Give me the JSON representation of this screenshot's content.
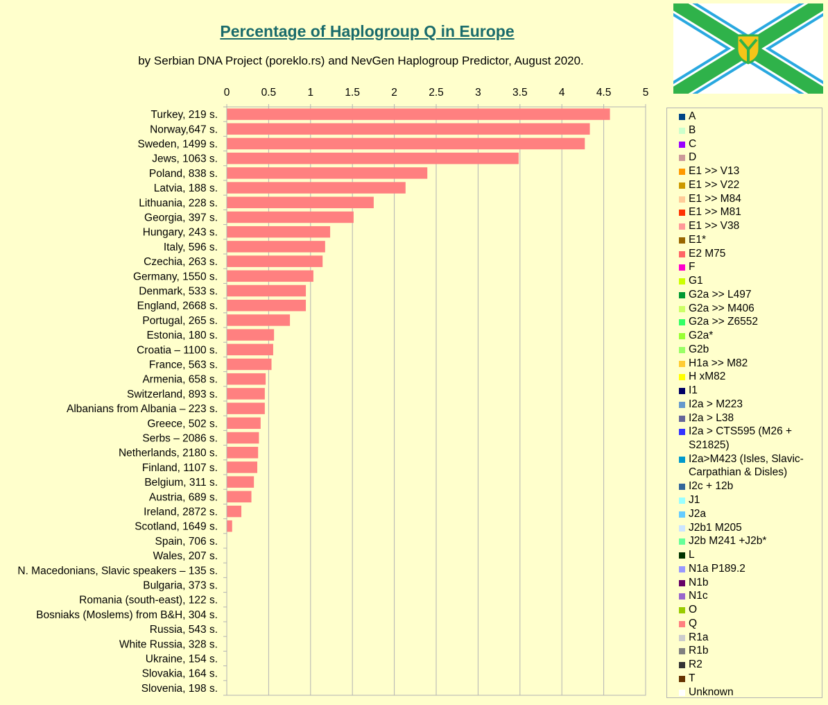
{
  "header": {
    "title": "Percentage of Haplogroup Q in Europe",
    "subtitle": "by Serbian DNA Project (poreklo.rs) and NevGen Haplogroup Predictor, August 2020."
  },
  "colors": {
    "bar": "#ff8080",
    "grid": "#b3b3b3",
    "background": "#ffffcc",
    "title": "#1a6b6b"
  },
  "chart_data": {
    "type": "bar",
    "orientation": "horizontal",
    "title": "Percentage of Haplogroup Q in Europe",
    "subtitle": "by Serbian DNA Project (poreklo.rs) and NevGen Haplogroup Predictor, August 2020.",
    "xlim": [
      0,
      5
    ],
    "x_ticks": [
      "0",
      "0.5",
      "1",
      "1.5",
      "2",
      "2.5",
      "3",
      "3.5",
      "4",
      "4.5",
      "5"
    ],
    "x_axis_position": "top",
    "grid": true,
    "legend_position": "right",
    "categories": [
      "Turkey, 219 s.",
      "Norway,647 s.",
      "Sweden, 1499 s.",
      "Jews, 1063 s.",
      "Poland, 838 s.",
      "Latvia, 188 s.",
      "Lithuania, 228 s.",
      "Georgia, 397 s.",
      "Hungary, 243 s.",
      "Italy, 596 s.",
      "Czechia, 263 s.",
      "Germany, 1550 s.",
      "Denmark, 533 s.",
      "England, 2668 s.",
      "Portugal, 265 s.",
      "Estonia, 180 s.",
      "Croatia – 1100 s.",
      "France, 563 s.",
      "Armenia, 658 s.",
      "Switzerland, 893 s.",
      "Albanians from Albania – 223 s.",
      "Greece, 502 s.",
      "Serbs – 2086 s.",
      "Netherlands, 2180 s.",
      "Finland, 1107 s.",
      "Belgium, 311 s.",
      "Austria, 689 s.",
      "Ireland, 2872 s.",
      "Scotland, 1649 s.",
      "Spain, 706 s.",
      "Wales, 207 s.",
      "N. Macedonians, Slavic speakers – 135 s.",
      "Bulgaria, 373 s.",
      "Romania (south-east), 122 s.",
      "Bosniaks (Moslems) from B&H, 304 s.",
      "Russia, 543 s.",
      "White Russia, 328 s.",
      "Ukraine, 154 s.",
      "Slovakia, 164 s.",
      "Slovenia, 198 s."
    ],
    "series": [
      {
        "name": "Q",
        "color": "#ff8080",
        "values": [
          4.57,
          4.33,
          4.27,
          3.48,
          2.39,
          2.13,
          1.75,
          1.51,
          1.23,
          1.17,
          1.14,
          1.03,
          0.94,
          0.94,
          0.75,
          0.56,
          0.55,
          0.53,
          0.46,
          0.45,
          0.45,
          0.4,
          0.38,
          0.37,
          0.36,
          0.32,
          0.29,
          0.17,
          0.06,
          0,
          0,
          0,
          0,
          0,
          0,
          0,
          0,
          0,
          0,
          0
        ]
      }
    ]
  },
  "legend": {
    "items": [
      {
        "label": "A",
        "color": "#004586"
      },
      {
        "label": "B",
        "color": "#ccffcc"
      },
      {
        "label": "C",
        "color": "#9900ff"
      },
      {
        "label": "D",
        "color": "#cc9999"
      },
      {
        "label": "E1 >> V13",
        "color": "#ff9900"
      },
      {
        "label": "E1 >> V22",
        "color": "#cc9900"
      },
      {
        "label": "E1 >> M84",
        "color": "#ffcc99"
      },
      {
        "label": "E1 >> M81",
        "color": "#ff3300"
      },
      {
        "label": "E1 >> V38",
        "color": "#ff9999"
      },
      {
        "label": "E1*",
        "color": "#996600"
      },
      {
        "label": "E2 M75",
        "color": "#ff6666"
      },
      {
        "label": "F",
        "color": "#ff00cc"
      },
      {
        "label": "G1",
        "color": "#ccff00"
      },
      {
        "label": "G2a >> L497",
        "color": "#009933"
      },
      {
        "label": "G2a >> M406",
        "color": "#ccff66"
      },
      {
        "label": "G2a >> Z6552",
        "color": "#33ff66"
      },
      {
        "label": "G2a*",
        "color": "#99ff33"
      },
      {
        "label": "G2b",
        "color": "#99ff66"
      },
      {
        "label": "H1a >> M82",
        "color": "#ffcc33"
      },
      {
        "label": "H xM82",
        "color": "#ffff00"
      },
      {
        "label": "I1",
        "color": "#000066"
      },
      {
        "label": "I2a > M223",
        "color": "#6699cc"
      },
      {
        "label": "I2a > L38",
        "color": "#666699"
      },
      {
        "label": "I2a > CTS595 (M26 + S21825)",
        "color": "#3333ff"
      },
      {
        "label": "I2a>M423 (Isles, Slavic-Carpathian & Disles)",
        "color": "#0099cc"
      },
      {
        "label": "I2c + 12b",
        "color": "#336699"
      },
      {
        "label": "J1",
        "color": "#99ffff"
      },
      {
        "label": "J2a",
        "color": "#66ccff"
      },
      {
        "label": "J2b1 M205",
        "color": "#cce5ff"
      },
      {
        "label": "J2b M241 +J2b*",
        "color": "#66ff99"
      },
      {
        "label": "L",
        "color": "#003300"
      },
      {
        "label": "N1a P189.2",
        "color": "#9999ff"
      },
      {
        "label": "N1b",
        "color": "#660066"
      },
      {
        "label": "N1c",
        "color": "#9966cc"
      },
      {
        "label": "O",
        "color": "#99cc00"
      },
      {
        "label": "Q",
        "color": "#ff8080"
      },
      {
        "label": "R1a",
        "color": "#cccccc"
      },
      {
        "label": "R1b",
        "color": "#808080"
      },
      {
        "label": "R2",
        "color": "#333333"
      },
      {
        "label": "T",
        "color": "#663300"
      },
      {
        "label": "Unknown",
        "color": "#ffffff"
      }
    ]
  }
}
